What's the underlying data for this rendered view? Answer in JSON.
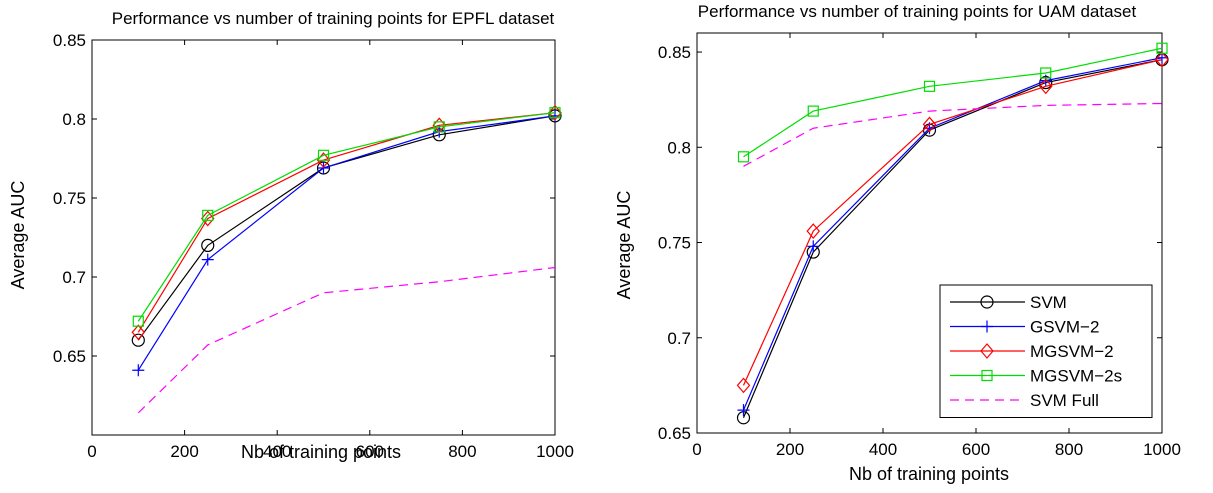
{
  "chart_data": [
    {
      "type": "line",
      "title": "Performance vs number of training points for EPFL dataset",
      "xlabel": "Nb of training points",
      "ylabel": "Average AUC",
      "xlim": [
        0,
        1000
      ],
      "ylim": [
        0.6,
        0.85
      ],
      "xticks": [
        0,
        200,
        400,
        600,
        800,
        1000
      ],
      "yticks": [
        0.65,
        0.7,
        0.75,
        0.8,
        0.85
      ],
      "xtick_labels": [
        "0",
        "200",
        "400",
        "600",
        "800",
        "1000"
      ],
      "ytick_labels": [
        "0.65",
        "0.7",
        "0.75",
        "0.8",
        "0.85"
      ],
      "grid": false,
      "legend": false,
      "x": [
        100,
        250,
        500,
        750,
        1000
      ],
      "series": [
        {
          "key": "svm",
          "values": [
            0.66,
            0.72,
            0.769,
            0.79,
            0.802
          ]
        },
        {
          "key": "gsvm2",
          "values": [
            0.641,
            0.711,
            0.769,
            0.792,
            0.802
          ]
        },
        {
          "key": "mgsvm2",
          "values": [
            0.665,
            0.737,
            0.774,
            0.796,
            0.804
          ]
        },
        {
          "key": "mgsvm2s",
          "values": [
            0.672,
            0.739,
            0.777,
            0.795,
            0.804
          ]
        },
        {
          "key": "svmfull",
          "values": [
            0.614,
            0.657,
            0.69,
            0.697,
            0.706
          ]
        }
      ]
    },
    {
      "type": "line",
      "title": "Performance vs number of training points for UAM dataset",
      "xlabel": "Nb of training points",
      "ylabel": "Average AUC",
      "xlim": [
        0,
        1000
      ],
      "ylim": [
        0.65,
        0.86
      ],
      "xticks": [
        0,
        200,
        400,
        600,
        800,
        1000
      ],
      "yticks": [
        0.65,
        0.7,
        0.75,
        0.8,
        0.85
      ],
      "xtick_labels": [
        "0",
        "200",
        "400",
        "600",
        "800",
        "1000"
      ],
      "ytick_labels": [
        "0.65",
        "0.7",
        "0.75",
        "0.8",
        "0.85"
      ],
      "grid": false,
      "legend": "bottom-right",
      "x": [
        100,
        250,
        500,
        750,
        1000
      ],
      "series": [
        {
          "key": "svm",
          "name": "SVM",
          "values": [
            0.658,
            0.745,
            0.809,
            0.834,
            0.846
          ]
        },
        {
          "key": "gsvm2",
          "name": "GSVM−2",
          "values": [
            0.662,
            0.748,
            0.81,
            0.835,
            0.847
          ]
        },
        {
          "key": "mgsvm2",
          "name": "MGSVM−2",
          "values": [
            0.675,
            0.756,
            0.812,
            0.832,
            0.846
          ]
        },
        {
          "key": "mgsvm2s",
          "name": "MGSVM−2s",
          "values": [
            0.795,
            0.819,
            0.832,
            0.839,
            0.852
          ]
        },
        {
          "key": "svmfull",
          "name": "SVM Full",
          "values": [
            0.79,
            0.81,
            0.819,
            0.822,
            0.823
          ]
        }
      ]
    }
  ],
  "styles": {
    "svm": {
      "color": "#000000",
      "marker": "circle",
      "dash": "solid"
    },
    "gsvm2": {
      "color": "#0000ff",
      "marker": "plus",
      "dash": "solid"
    },
    "mgsvm2": {
      "color": "#ff0000",
      "marker": "diamond",
      "dash": "solid"
    },
    "mgsvm2s": {
      "color": "#00dd00",
      "marker": "square",
      "dash": "solid"
    },
    "svmfull": {
      "color": "#ff00ff",
      "marker": "none",
      "dash": "dashed"
    }
  }
}
